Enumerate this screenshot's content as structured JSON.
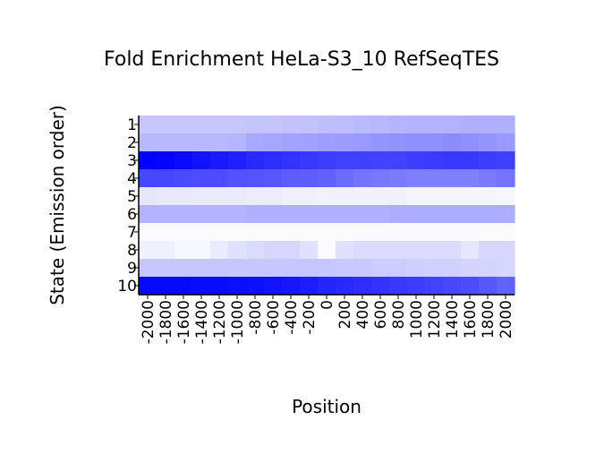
{
  "chart_data": {
    "type": "heatmap",
    "title": "Fold Enrichment HeLa-S3_10 RefSeqTES",
    "xlabel": "Position",
    "ylabel": "State (Emission order)",
    "x_ticks": [
      "-2000",
      "-1800",
      "-1600",
      "-1400",
      "-1200",
      "-1000",
      "-800",
      "-600",
      "-400",
      "-200",
      "0",
      "200",
      "400",
      "600",
      "800",
      "1000",
      "1200",
      "1400",
      "1600",
      "1800",
      "2000"
    ],
    "y_ticks": [
      "1",
      "2",
      "3",
      "4",
      "5",
      "6",
      "7",
      "8",
      "9",
      "10"
    ],
    "color_low": "#ffffff",
    "color_high": "#0000ff",
    "values": [
      [
        0.22,
        0.22,
        0.22,
        0.22,
        0.22,
        0.22,
        0.23,
        0.23,
        0.24,
        0.24,
        0.25,
        0.26,
        0.27,
        0.28,
        0.29,
        0.3,
        0.3,
        0.3,
        0.31,
        0.31,
        0.31
      ],
      [
        0.28,
        0.28,
        0.28,
        0.28,
        0.28,
        0.29,
        0.34,
        0.35,
        0.36,
        0.37,
        0.38,
        0.39,
        0.4,
        0.42,
        0.43,
        0.44,
        0.44,
        0.45,
        0.44,
        0.42,
        0.4
      ],
      [
        1.0,
        0.98,
        0.96,
        0.93,
        0.9,
        0.88,
        0.84,
        0.82,
        0.8,
        0.78,
        0.76,
        0.75,
        0.75,
        0.74,
        0.74,
        0.76,
        0.77,
        0.78,
        0.78,
        0.76,
        0.75
      ],
      [
        0.72,
        0.72,
        0.71,
        0.7,
        0.7,
        0.68,
        0.67,
        0.66,
        0.64,
        0.63,
        0.62,
        0.58,
        0.55,
        0.53,
        0.52,
        0.5,
        0.5,
        0.5,
        0.5,
        0.52,
        0.55
      ],
      [
        0.1,
        0.09,
        0.09,
        0.08,
        0.08,
        0.08,
        0.07,
        0.07,
        0.06,
        0.06,
        0.05,
        0.05,
        0.05,
        0.05,
        0.05,
        0.04,
        0.04,
        0.04,
        0.04,
        0.04,
        0.03
      ],
      [
        0.3,
        0.3,
        0.3,
        0.3,
        0.3,
        0.3,
        0.31,
        0.31,
        0.31,
        0.31,
        0.31,
        0.31,
        0.31,
        0.31,
        0.32,
        0.32,
        0.32,
        0.32,
        0.32,
        0.32,
        0.32
      ],
      [
        0.02,
        0.02,
        0.02,
        0.02,
        0.02,
        0.02,
        0.02,
        0.02,
        0.02,
        0.02,
        0.02,
        0.02,
        0.02,
        0.02,
        0.02,
        0.02,
        0.02,
        0.02,
        0.02,
        0.02,
        0.02
      ],
      [
        0.06,
        0.06,
        0.03,
        0.03,
        0.08,
        0.12,
        0.14,
        0.16,
        0.16,
        0.12,
        0.02,
        0.12,
        0.14,
        0.14,
        0.14,
        0.14,
        0.14,
        0.14,
        0.1,
        0.16,
        0.16
      ],
      [
        0.22,
        0.22,
        0.22,
        0.22,
        0.22,
        0.22,
        0.22,
        0.22,
        0.22,
        0.22,
        0.22,
        0.21,
        0.21,
        0.2,
        0.2,
        0.19,
        0.18,
        0.18,
        0.17,
        0.17,
        0.16
      ],
      [
        0.97,
        0.97,
        0.97,
        0.96,
        0.96,
        0.95,
        0.94,
        0.93,
        0.91,
        0.89,
        0.86,
        0.84,
        0.82,
        0.8,
        0.78,
        0.76,
        0.74,
        0.72,
        0.7,
        0.66,
        0.62
      ]
    ]
  }
}
